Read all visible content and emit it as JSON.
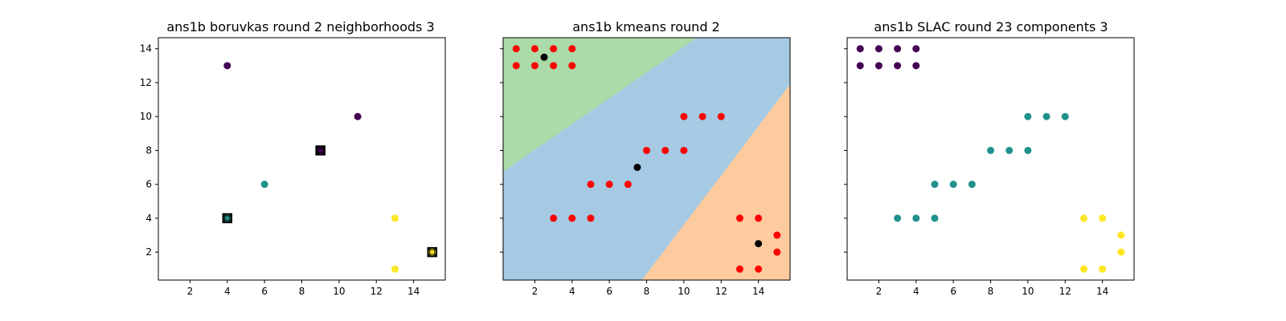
{
  "chart_data": [
    {
      "type": "scatter",
      "title": "ans1b boruvkas round 2 neighborhoods 3",
      "xlim": [
        0.3,
        15.7
      ],
      "ylim": [
        0.35,
        14.65
      ],
      "xticks": [
        2,
        4,
        6,
        8,
        10,
        12,
        14
      ],
      "yticks": [
        2,
        4,
        6,
        8,
        10,
        12,
        14
      ],
      "show_ytick_labels": true,
      "background_regions": [],
      "points": [
        {
          "x": 4,
          "y": 13,
          "color": "#440154"
        },
        {
          "x": 11,
          "y": 10,
          "color": "#440154"
        },
        {
          "x": 9,
          "y": 8,
          "color": "#440154"
        },
        {
          "x": 6,
          "y": 6,
          "color": "#21918c"
        },
        {
          "x": 4,
          "y": 4,
          "color": "#21918c"
        },
        {
          "x": 13,
          "y": 4,
          "color": "#fde725"
        },
        {
          "x": 13,
          "y": 1,
          "color": "#fde725"
        },
        {
          "x": 15,
          "y": 2,
          "color": "#fde725"
        }
      ],
      "square_markers": [
        {
          "x": 4,
          "y": 4,
          "color": "#21918c"
        },
        {
          "x": 9,
          "y": 8,
          "color": "#440154"
        },
        {
          "x": 15,
          "y": 2,
          "color": "#fde725"
        }
      ]
    },
    {
      "type": "scatter",
      "title": "ans1b kmeans round 2",
      "xlim": [
        0.3,
        15.7
      ],
      "ylim": [
        0.35,
        14.65
      ],
      "xticks": [
        2,
        4,
        6,
        8,
        10,
        12,
        14
      ],
      "yticks": [
        2,
        4,
        6,
        8,
        10,
        12,
        14
      ],
      "show_ytick_labels": false,
      "background_regions": [
        {
          "color": "#a6cae3",
          "polygon": [
            [
              0.3,
              0.35
            ],
            [
              15.7,
              0.35
            ],
            [
              15.7,
              14.65
            ],
            [
              0.3,
              14.65
            ]
          ]
        },
        {
          "color": "#abdba8",
          "polygon": [
            [
              0.3,
              6.75
            ],
            [
              0.3,
              14.65
            ],
            [
              10.7,
              14.65
            ]
          ]
        },
        {
          "color": "#fecb9e",
          "polygon": [
            [
              7.75,
              0.35
            ],
            [
              15.7,
              0.35
            ],
            [
              15.7,
              11.9
            ]
          ]
        }
      ],
      "points": [
        {
          "x": 1,
          "y": 14,
          "color": "#ff0000"
        },
        {
          "x": 2,
          "y": 14,
          "color": "#ff0000"
        },
        {
          "x": 3,
          "y": 14,
          "color": "#ff0000"
        },
        {
          "x": 4,
          "y": 14,
          "color": "#ff0000"
        },
        {
          "x": 1,
          "y": 13,
          "color": "#ff0000"
        },
        {
          "x": 2,
          "y": 13,
          "color": "#ff0000"
        },
        {
          "x": 3,
          "y": 13,
          "color": "#ff0000"
        },
        {
          "x": 4,
          "y": 13,
          "color": "#ff0000"
        },
        {
          "x": 10,
          "y": 10,
          "color": "#ff0000"
        },
        {
          "x": 11,
          "y": 10,
          "color": "#ff0000"
        },
        {
          "x": 12,
          "y": 10,
          "color": "#ff0000"
        },
        {
          "x": 8,
          "y": 8,
          "color": "#ff0000"
        },
        {
          "x": 9,
          "y": 8,
          "color": "#ff0000"
        },
        {
          "x": 10,
          "y": 8,
          "color": "#ff0000"
        },
        {
          "x": 5,
          "y": 6,
          "color": "#ff0000"
        },
        {
          "x": 6,
          "y": 6,
          "color": "#ff0000"
        },
        {
          "x": 7,
          "y": 6,
          "color": "#ff0000"
        },
        {
          "x": 3,
          "y": 4,
          "color": "#ff0000"
        },
        {
          "x": 4,
          "y": 4,
          "color": "#ff0000"
        },
        {
          "x": 5,
          "y": 4,
          "color": "#ff0000"
        },
        {
          "x": 13,
          "y": 4,
          "color": "#ff0000"
        },
        {
          "x": 14,
          "y": 4,
          "color": "#ff0000"
        },
        {
          "x": 15,
          "y": 3,
          "color": "#ff0000"
        },
        {
          "x": 15,
          "y": 2,
          "color": "#ff0000"
        },
        {
          "x": 13,
          "y": 1,
          "color": "#ff0000"
        },
        {
          "x": 14,
          "y": 1,
          "color": "#ff0000"
        },
        {
          "x": 2.5,
          "y": 13.5,
          "color": "#000000"
        },
        {
          "x": 7.5,
          "y": 7,
          "color": "#000000"
        },
        {
          "x": 14,
          "y": 2.5,
          "color": "#000000"
        }
      ],
      "square_markers": []
    },
    {
      "type": "scatter",
      "title": "ans1b SLAC round 23 components 3",
      "xlim": [
        0.3,
        15.7
      ],
      "ylim": [
        0.35,
        14.65
      ],
      "xticks": [
        2,
        4,
        6,
        8,
        10,
        12,
        14
      ],
      "yticks": [
        2,
        4,
        6,
        8,
        10,
        12,
        14
      ],
      "show_ytick_labels": false,
      "background_regions": [],
      "points": [
        {
          "x": 1,
          "y": 14,
          "color": "#440154"
        },
        {
          "x": 2,
          "y": 14,
          "color": "#440154"
        },
        {
          "x": 3,
          "y": 14,
          "color": "#440154"
        },
        {
          "x": 4,
          "y": 14,
          "color": "#440154"
        },
        {
          "x": 1,
          "y": 13,
          "color": "#440154"
        },
        {
          "x": 2,
          "y": 13,
          "color": "#440154"
        },
        {
          "x": 3,
          "y": 13,
          "color": "#440154"
        },
        {
          "x": 4,
          "y": 13,
          "color": "#440154"
        },
        {
          "x": 10,
          "y": 10,
          "color": "#21918c"
        },
        {
          "x": 11,
          "y": 10,
          "color": "#21918c"
        },
        {
          "x": 12,
          "y": 10,
          "color": "#21918c"
        },
        {
          "x": 8,
          "y": 8,
          "color": "#21918c"
        },
        {
          "x": 9,
          "y": 8,
          "color": "#21918c"
        },
        {
          "x": 10,
          "y": 8,
          "color": "#21918c"
        },
        {
          "x": 5,
          "y": 6,
          "color": "#21918c"
        },
        {
          "x": 6,
          "y": 6,
          "color": "#21918c"
        },
        {
          "x": 7,
          "y": 6,
          "color": "#21918c"
        },
        {
          "x": 3,
          "y": 4,
          "color": "#21918c"
        },
        {
          "x": 4,
          "y": 4,
          "color": "#21918c"
        },
        {
          "x": 5,
          "y": 4,
          "color": "#21918c"
        },
        {
          "x": 13,
          "y": 4,
          "color": "#fde725"
        },
        {
          "x": 14,
          "y": 4,
          "color": "#fde725"
        },
        {
          "x": 15,
          "y": 3,
          "color": "#fde725"
        },
        {
          "x": 15,
          "y": 2,
          "color": "#fde725"
        },
        {
          "x": 13,
          "y": 1,
          "color": "#fde725"
        },
        {
          "x": 14,
          "y": 1,
          "color": "#fde725"
        }
      ],
      "square_markers": []
    }
  ]
}
